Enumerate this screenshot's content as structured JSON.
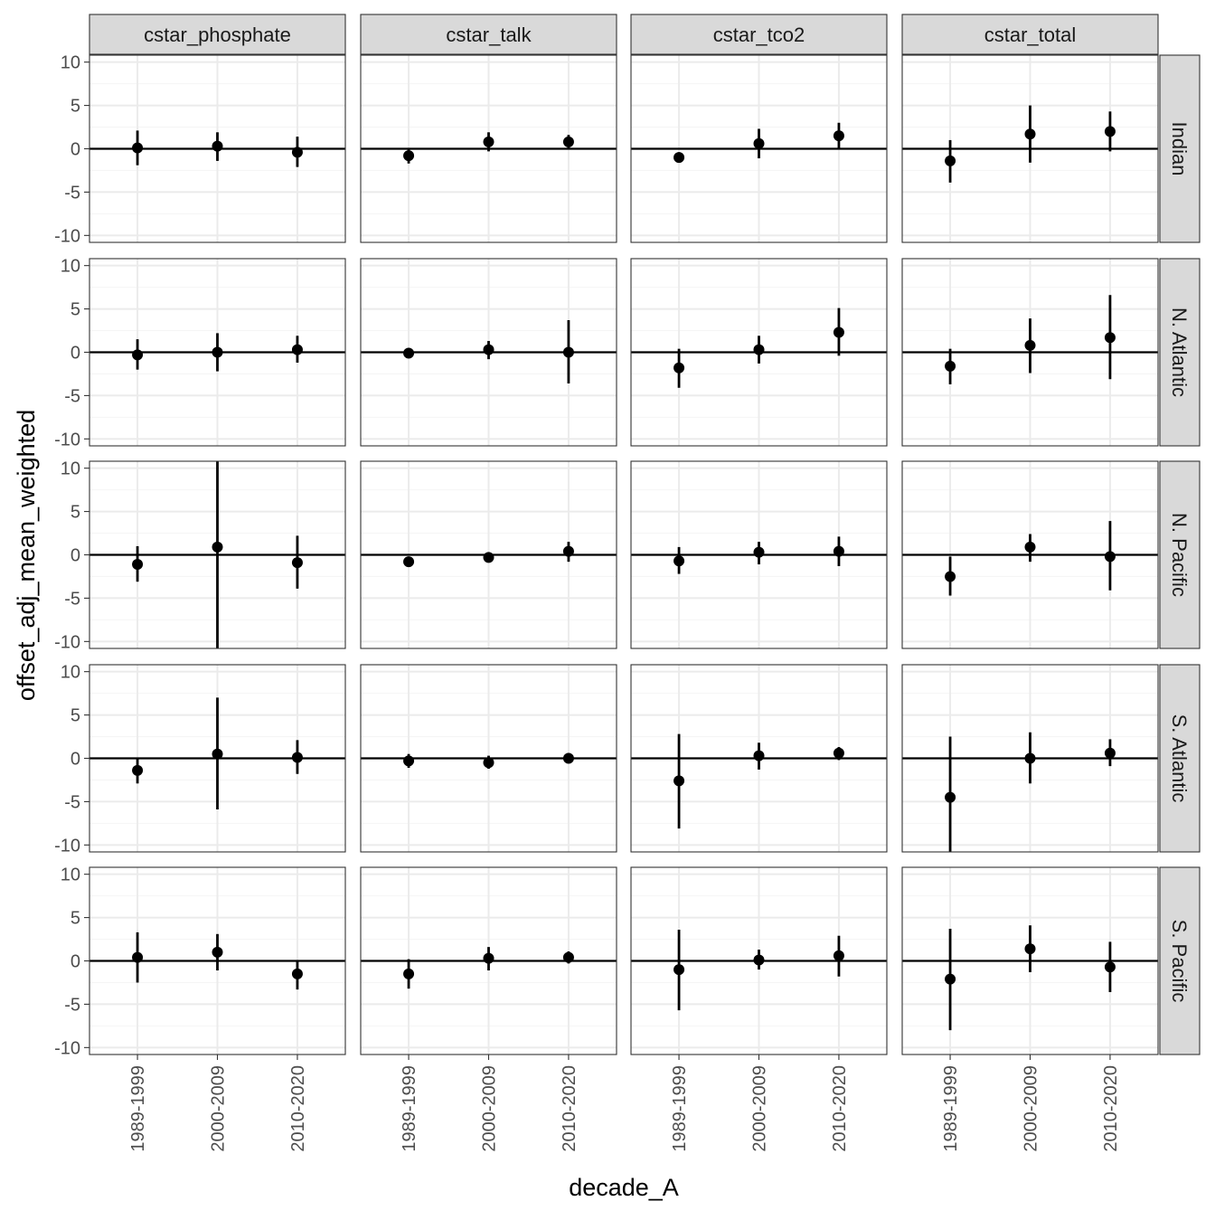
{
  "chart_data": {
    "type": "scatter",
    "subtype": "point-range faceted grid",
    "xlabel": "decade_A",
    "ylabel": "offset_adj_mean_weighted",
    "x_categories": [
      "1989-1999",
      "2000-2009",
      "2010-2020"
    ],
    "yticks": [
      -10,
      -5,
      0,
      5,
      10
    ],
    "yticks_labels": [
      "-10",
      "-5",
      "0",
      "5",
      "10"
    ],
    "ylim": [
      -10.8,
      10.8
    ],
    "reference_line_y": 0,
    "grid": true,
    "facet_columns": [
      "cstar_phosphate",
      "cstar_talk",
      "cstar_tco2",
      "cstar_total"
    ],
    "facet_rows": [
      "Indian",
      "N. Atlantic",
      "N. Pacific",
      "S. Atlantic",
      "S. Pacific"
    ],
    "panels": [
      {
        "row": "Indian",
        "col": "cstar_phosphate",
        "points": [
          {
            "x": "1989-1999",
            "y": 0.1,
            "ymin": -1.9,
            "ymax": 2.1
          },
          {
            "x": "2000-2009",
            "y": 0.3,
            "ymin": -1.4,
            "ymax": 1.9
          },
          {
            "x": "2010-2020",
            "y": -0.4,
            "ymin": -2.1,
            "ymax": 1.4
          }
        ]
      },
      {
        "row": "Indian",
        "col": "cstar_talk",
        "points": [
          {
            "x": "1989-1999",
            "y": -0.8,
            "ymin": -1.7,
            "ymax": 0.1
          },
          {
            "x": "2000-2009",
            "y": 0.8,
            "ymin": -0.3,
            "ymax": 1.9
          },
          {
            "x": "2010-2020",
            "y": 0.8,
            "ymin": 0.0,
            "ymax": 1.6
          }
        ]
      },
      {
        "row": "Indian",
        "col": "cstar_tco2",
        "points": [
          {
            "x": "1989-1999",
            "y": -1.0,
            "ymin": -1.6,
            "ymax": -0.4
          },
          {
            "x": "2000-2009",
            "y": 0.6,
            "ymin": -1.1,
            "ymax": 2.3
          },
          {
            "x": "2010-2020",
            "y": 1.5,
            "ymin": 0.0,
            "ymax": 3.0
          }
        ]
      },
      {
        "row": "Indian",
        "col": "cstar_total",
        "points": [
          {
            "x": "1989-1999",
            "y": -1.4,
            "ymin": -3.9,
            "ymax": 1.0
          },
          {
            "x": "2000-2009",
            "y": 1.7,
            "ymin": -1.6,
            "ymax": 5.0
          },
          {
            "x": "2010-2020",
            "y": 2.0,
            "ymin": -0.3,
            "ymax": 4.3
          }
        ]
      },
      {
        "row": "N. Atlantic",
        "col": "cstar_phosphate",
        "points": [
          {
            "x": "1989-1999",
            "y": -0.3,
            "ymin": -2.0,
            "ymax": 1.5
          },
          {
            "x": "2000-2009",
            "y": 0.0,
            "ymin": -2.2,
            "ymax": 2.2
          },
          {
            "x": "2010-2020",
            "y": 0.3,
            "ymin": -1.2,
            "ymax": 1.9
          }
        ]
      },
      {
        "row": "N. Atlantic",
        "col": "cstar_talk",
        "points": [
          {
            "x": "1989-1999",
            "y": -0.1,
            "ymin": -0.5,
            "ymax": 0.3
          },
          {
            "x": "2000-2009",
            "y": 0.3,
            "ymin": -0.8,
            "ymax": 1.3
          },
          {
            "x": "2010-2020",
            "y": 0.0,
            "ymin": -3.6,
            "ymax": 3.7
          }
        ]
      },
      {
        "row": "N. Atlantic",
        "col": "cstar_tco2",
        "points": [
          {
            "x": "1989-1999",
            "y": -1.8,
            "ymin": -4.1,
            "ymax": 0.4
          },
          {
            "x": "2000-2009",
            "y": 0.3,
            "ymin": -1.3,
            "ymax": 1.9
          },
          {
            "x": "2010-2020",
            "y": 2.3,
            "ymin": -0.4,
            "ymax": 5.1
          }
        ]
      },
      {
        "row": "N. Atlantic",
        "col": "cstar_total",
        "points": [
          {
            "x": "1989-1999",
            "y": -1.6,
            "ymin": -3.7,
            "ymax": 0.4
          },
          {
            "x": "2000-2009",
            "y": 0.8,
            "ymin": -2.4,
            "ymax": 3.9
          },
          {
            "x": "2010-2020",
            "y": 1.7,
            "ymin": -3.1,
            "ymax": 6.6
          }
        ]
      },
      {
        "row": "N. Pacific",
        "col": "cstar_phosphate",
        "points": [
          {
            "x": "1989-1999",
            "y": -1.1,
            "ymin": -3.1,
            "ymax": 1.0
          },
          {
            "x": "2000-2009",
            "y": 0.9,
            "ymin": -10.8,
            "ymax": 10.8
          },
          {
            "x": "2010-2020",
            "y": -0.9,
            "ymin": -3.9,
            "ymax": 2.2
          }
        ]
      },
      {
        "row": "N. Pacific",
        "col": "cstar_talk",
        "points": [
          {
            "x": "1989-1999",
            "y": -0.8,
            "ymin": -1.2,
            "ymax": -0.4
          },
          {
            "x": "2000-2009",
            "y": -0.3,
            "ymin": -0.7,
            "ymax": 0.1
          },
          {
            "x": "2010-2020",
            "y": 0.4,
            "ymin": -0.8,
            "ymax": 1.5
          }
        ]
      },
      {
        "row": "N. Pacific",
        "col": "cstar_tco2",
        "points": [
          {
            "x": "1989-1999",
            "y": -0.7,
            "ymin": -2.2,
            "ymax": 0.9
          },
          {
            "x": "2000-2009",
            "y": 0.3,
            "ymin": -1.1,
            "ymax": 1.5
          },
          {
            "x": "2010-2020",
            "y": 0.4,
            "ymin": -1.3,
            "ymax": 2.1
          }
        ]
      },
      {
        "row": "N. Pacific",
        "col": "cstar_total",
        "points": [
          {
            "x": "1989-1999",
            "y": -2.5,
            "ymin": -4.7,
            "ymax": -0.2
          },
          {
            "x": "2000-2009",
            "y": 0.9,
            "ymin": -0.8,
            "ymax": 2.4
          },
          {
            "x": "2010-2020",
            "y": -0.2,
            "ymin": -4.1,
            "ymax": 3.9
          }
        ]
      },
      {
        "row": "S. Atlantic",
        "col": "cstar_phosphate",
        "points": [
          {
            "x": "1989-1999",
            "y": -1.4,
            "ymin": -2.9,
            "ymax": 0.1
          },
          {
            "x": "2000-2009",
            "y": 0.5,
            "ymin": -5.9,
            "ymax": 7.0
          },
          {
            "x": "2010-2020",
            "y": 0.1,
            "ymin": -1.8,
            "ymax": 2.1
          }
        ]
      },
      {
        "row": "S. Atlantic",
        "col": "cstar_talk",
        "points": [
          {
            "x": "1989-1999",
            "y": -0.3,
            "ymin": -1.1,
            "ymax": 0.5
          },
          {
            "x": "2000-2009",
            "y": -0.5,
            "ymin": -1.2,
            "ymax": 0.3
          },
          {
            "x": "2010-2020",
            "y": 0.0,
            "ymin": -0.5,
            "ymax": 0.6
          }
        ]
      },
      {
        "row": "S. Atlantic",
        "col": "cstar_tco2",
        "points": [
          {
            "x": "1989-1999",
            "y": -2.6,
            "ymin": -8.1,
            "ymax": 2.8
          },
          {
            "x": "2000-2009",
            "y": 0.3,
            "ymin": -1.3,
            "ymax": 1.8
          },
          {
            "x": "2010-2020",
            "y": 0.6,
            "ymin": -0.2,
            "ymax": 1.3
          }
        ]
      },
      {
        "row": "S. Atlantic",
        "col": "cstar_total",
        "points": [
          {
            "x": "1989-1999",
            "y": -4.5,
            "ymin": -10.8,
            "ymax": 2.5
          },
          {
            "x": "2000-2009",
            "y": 0.0,
            "ymin": -2.9,
            "ymax": 3.0
          },
          {
            "x": "2010-2020",
            "y": 0.6,
            "ymin": -0.9,
            "ymax": 2.2
          }
        ]
      },
      {
        "row": "S. Pacific",
        "col": "cstar_phosphate",
        "points": [
          {
            "x": "1989-1999",
            "y": 0.4,
            "ymin": -2.5,
            "ymax": 3.3
          },
          {
            "x": "2000-2009",
            "y": 1.0,
            "ymin": -1.1,
            "ymax": 3.1
          },
          {
            "x": "2010-2020",
            "y": -1.5,
            "ymin": -3.3,
            "ymax": 0.1
          }
        ]
      },
      {
        "row": "S. Pacific",
        "col": "cstar_talk",
        "points": [
          {
            "x": "1989-1999",
            "y": -1.5,
            "ymin": -3.2,
            "ymax": 0.2
          },
          {
            "x": "2000-2009",
            "y": 0.3,
            "ymin": -1.1,
            "ymax": 1.6
          },
          {
            "x": "2010-2020",
            "y": 0.4,
            "ymin": -0.3,
            "ymax": 1.1
          }
        ]
      },
      {
        "row": "S. Pacific",
        "col": "cstar_tco2",
        "points": [
          {
            "x": "1989-1999",
            "y": -1.0,
            "ymin": -5.7,
            "ymax": 3.6
          },
          {
            "x": "2000-2009",
            "y": 0.1,
            "ymin": -1.0,
            "ymax": 1.3
          },
          {
            "x": "2010-2020",
            "y": 0.6,
            "ymin": -1.8,
            "ymax": 2.9
          }
        ]
      },
      {
        "row": "S. Pacific",
        "col": "cstar_total",
        "points": [
          {
            "x": "1989-1999",
            "y": -2.1,
            "ymin": -8.0,
            "ymax": 3.7
          },
          {
            "x": "2000-2009",
            "y": 1.4,
            "ymin": -1.3,
            "ymax": 4.1
          },
          {
            "x": "2010-2020",
            "y": -0.7,
            "ymin": -3.6,
            "ymax": 2.2
          }
        ]
      }
    ],
    "colors": {
      "points": "#000000",
      "panel_background": "#ffffff",
      "panel_border": "#333333",
      "grid_major": "#ebebeb",
      "grid_minor": "#f5f5f5",
      "strip_fill": "#d9d9d9",
      "tick_text": "#4d4d4d"
    }
  }
}
